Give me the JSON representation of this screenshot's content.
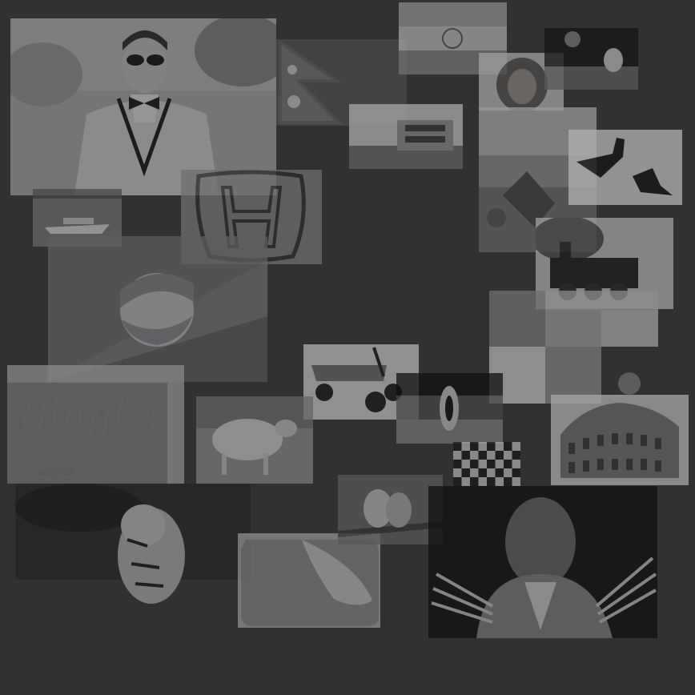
{
  "background": "#353535",
  "images": [
    {
      "name": "man-tuxedo-sunglasses"
    },
    {
      "name": "nepal-flag"
    },
    {
      "name": "india-flag"
    },
    {
      "name": "lion"
    },
    {
      "name": "rugby-ball-field"
    },
    {
      "name": "paddle-steamer"
    },
    {
      "name": "yacht"
    },
    {
      "name": "honda-logo"
    },
    {
      "name": "rodeo-collage"
    },
    {
      "name": "martial-arts-kick"
    },
    {
      "name": "steam-train"
    },
    {
      "name": "pepsi-can"
    },
    {
      "name": "toy-wagon"
    },
    {
      "name": "animated-characters-collage"
    },
    {
      "name": "kenya-shield-flag"
    },
    {
      "name": "checkered-flag"
    },
    {
      "name": "colosseum"
    },
    {
      "name": "singles-poster"
    },
    {
      "name": "sheep"
    },
    {
      "name": "tiger-in-water"
    },
    {
      "name": "peeled-sticker"
    },
    {
      "name": "birds-on-branch"
    },
    {
      "name": "wolverine"
    }
  ],
  "singles": {
    "title": "Singles",
    "year": "est. 2009"
  }
}
